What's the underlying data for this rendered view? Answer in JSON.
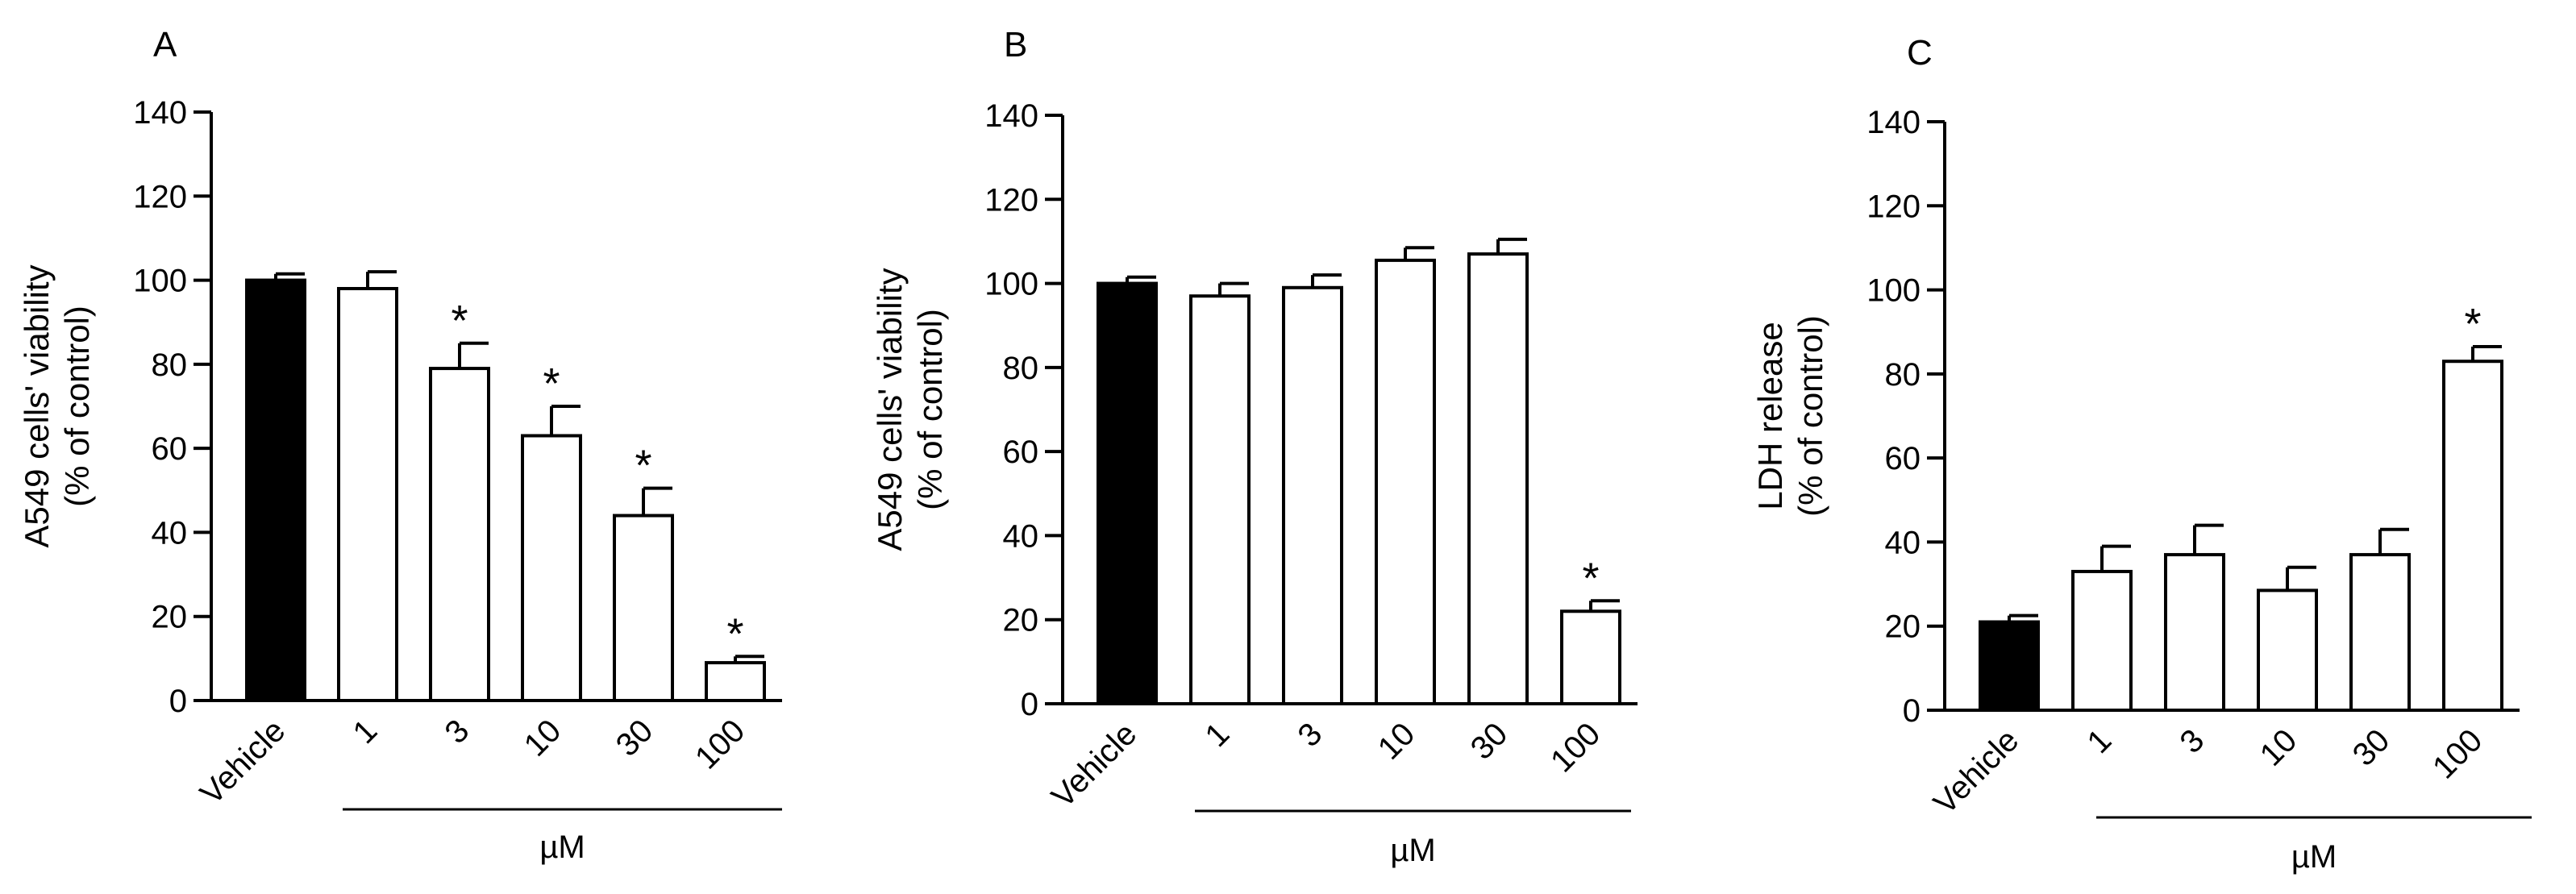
{
  "colors": {
    "vehicle": "#000000",
    "treatment": "#ffffff",
    "stroke": "#000000"
  },
  "chart_data": [
    {
      "type": "bar",
      "panel": "A",
      "ylabel": [
        "A549 cells'  viability",
        "(% of control)"
      ],
      "xlabel": "µM",
      "ylim": [
        0,
        140
      ],
      "yticks": [
        0,
        20,
        40,
        60,
        80,
        100,
        120,
        140
      ],
      "categories": [
        "Vehicle",
        "1",
        "3",
        "10",
        "30",
        "100"
      ],
      "values": [
        100,
        98,
        79,
        63,
        44,
        9
      ],
      "errors": [
        1.5,
        4,
        6,
        7,
        6.5,
        1.5
      ],
      "significant": [
        false,
        false,
        true,
        true,
        true,
        true
      ],
      "significance_marker": "*"
    },
    {
      "type": "bar",
      "panel": "B",
      "ylabel": [
        "A549 cells'  viability",
        "(% of control)"
      ],
      "xlabel": "µM",
      "ylim": [
        0,
        140
      ],
      "yticks": [
        0,
        20,
        40,
        60,
        80,
        100,
        120,
        140
      ],
      "categories": [
        "Vehicle",
        "1",
        "3",
        "10",
        "30",
        "100"
      ],
      "values": [
        100,
        97,
        99,
        105.5,
        107,
        22
      ],
      "errors": [
        1.5,
        3,
        3,
        3,
        3.5,
        2.5
      ],
      "significant": [
        false,
        false,
        false,
        false,
        false,
        true
      ],
      "significance_marker": "*"
    },
    {
      "type": "bar",
      "panel": "C",
      "ylabel": [
        "LDH release",
        "(% of control)"
      ],
      "xlabel": "µM",
      "ylim": [
        0,
        140
      ],
      "yticks": [
        0,
        20,
        40,
        60,
        80,
        100,
        120,
        140
      ],
      "categories": [
        "Vehicle",
        "1",
        "3",
        "10",
        "30",
        "100"
      ],
      "values": [
        21,
        33,
        37,
        28.5,
        37,
        83
      ],
      "errors": [
        1.5,
        6,
        7,
        5.5,
        6,
        3.5
      ],
      "significant": [
        false,
        false,
        false,
        false,
        false,
        true
      ],
      "significance_marker": "*"
    }
  ]
}
